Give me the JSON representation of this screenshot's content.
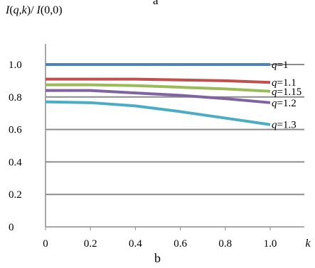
{
  "figure": {
    "top_cut_label": "a",
    "panel_label": "b"
  },
  "chart_data": {
    "type": "line",
    "ylabel": "I(q,k)/ I(0,0)",
    "xlabel": "k",
    "xlim": [
      0,
      1.0
    ],
    "ylim": [
      0,
      1.0
    ],
    "x_ticks": [
      "0",
      "0.2",
      "0.4",
      "0.6",
      "0.8",
      "1.0"
    ],
    "y_ticks": [
      "0",
      "0.2",
      "0.4",
      "0.6",
      "0.8",
      "1.0"
    ],
    "grid": "horizontal",
    "legend": "inline-right",
    "x": [
      0,
      0.2,
      0.4,
      0.6,
      0.8,
      1.0
    ],
    "series": [
      {
        "name": "q=1",
        "q_label": "=1",
        "color": "#4f81bd",
        "values": [
          1.0,
          1.0,
          1.0,
          1.0,
          1.0,
          1.0
        ]
      },
      {
        "name": "q=1.1",
        "q_label": "=1.1",
        "color": "#c0504d",
        "values": [
          0.91,
          0.91,
          0.91,
          0.905,
          0.9,
          0.89
        ]
      },
      {
        "name": "q=1.15",
        "q_label": "=1.15",
        "color": "#9bbb59",
        "values": [
          0.875,
          0.875,
          0.87,
          0.86,
          0.85,
          0.835
        ]
      },
      {
        "name": "q=1.2",
        "q_label": "=1.2",
        "color": "#8064a2",
        "values": [
          0.84,
          0.84,
          0.825,
          0.81,
          0.79,
          0.765
        ]
      },
      {
        "name": "q=1.3",
        "q_label": "=1.3",
        "color": "#4bacc6",
        "values": [
          0.77,
          0.765,
          0.745,
          0.71,
          0.67,
          0.63
        ]
      }
    ]
  }
}
